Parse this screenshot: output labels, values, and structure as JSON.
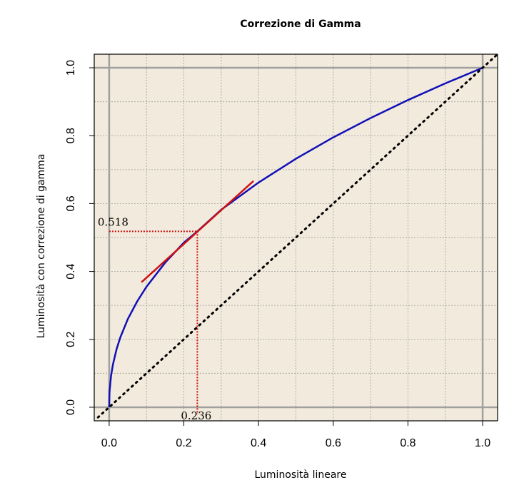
{
  "chart_data": {
    "type": "line",
    "title": "Correzione di Gamma",
    "xlabel": "Luminosità lineare",
    "ylabel": "Luminosità con correzione di gamma",
    "xlim": [
      -0.04,
      1.04
    ],
    "ylim": [
      -0.04,
      1.04
    ],
    "x_ticks": [
      0.0,
      0.2,
      0.4,
      0.6,
      0.8,
      1.0
    ],
    "y_ticks": [
      0.0,
      0.2,
      0.4,
      0.6,
      0.8,
      1.0
    ],
    "x_tick_labels": [
      "0.0",
      "0.2",
      "0.4",
      "0.6",
      "0.8",
      "1.0"
    ],
    "y_tick_labels": [
      "0.0",
      "0.2",
      "0.4",
      "0.6",
      "0.8",
      "1.0"
    ],
    "grid": true,
    "gamma": 0.45,
    "series": [
      {
        "kind": "curve",
        "color": "#1010b8",
        "x": [
          0.0,
          0.001,
          0.005,
          0.01,
          0.02,
          0.03,
          0.05,
          0.075,
          0.1,
          0.15,
          0.2,
          0.236,
          0.3,
          0.4,
          0.5,
          0.6,
          0.7,
          0.8,
          0.9,
          1.0
        ],
        "y": [
          0.0,
          0.045,
          0.092,
          0.126,
          0.172,
          0.206,
          0.26,
          0.312,
          0.355,
          0.426,
          0.485,
          0.518,
          0.582,
          0.662,
          0.732,
          0.795,
          0.852,
          0.905,
          0.954,
          1.0
        ]
      },
      {
        "kind": "diagonal",
        "color": "#000000",
        "x": [
          -0.03,
          1.04
        ],
        "y": [
          -0.03,
          1.04
        ]
      },
      {
        "kind": "tangent",
        "color": "#cc1111",
        "x": [
          0.088,
          0.385
        ],
        "y": [
          0.37,
          0.665
        ]
      }
    ],
    "annotations": [
      {
        "label": "0.518",
        "x": 0.236,
        "y": 0.518,
        "axis": "y"
      },
      {
        "label": "0.236",
        "x": 0.236,
        "y": 0.518,
        "axis": "x"
      }
    ],
    "colors": {
      "plot_background": "#f2eadc",
      "grid": "#a8a8a8",
      "reference_lines": "#a0a0a0",
      "annotation": "#cc1111"
    }
  }
}
